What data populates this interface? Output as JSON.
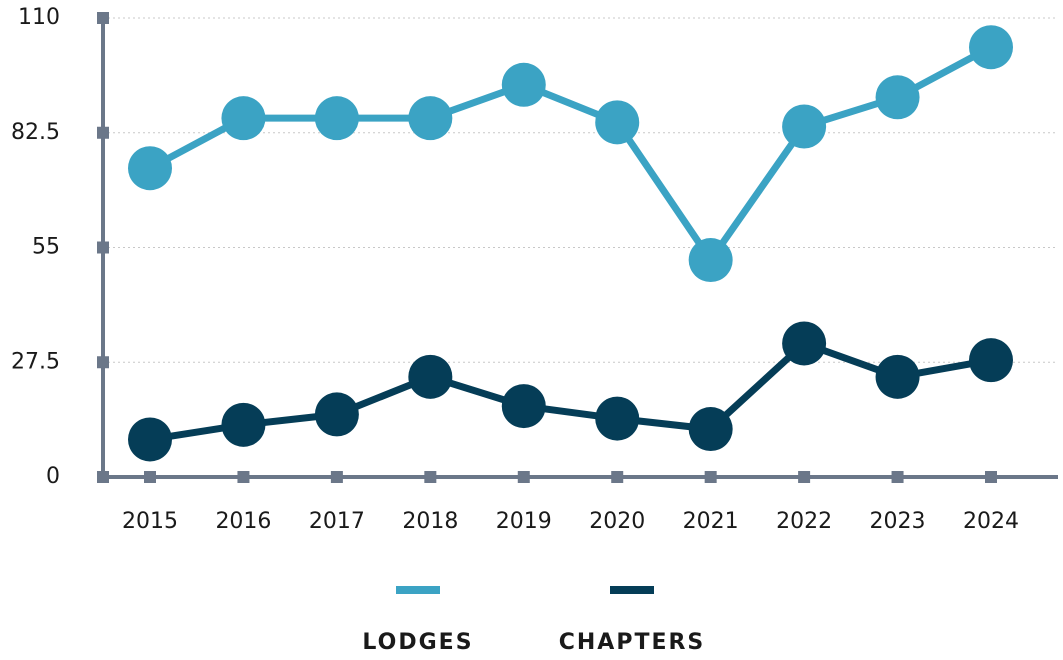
{
  "chart_data": {
    "type": "line",
    "categories": [
      "2015",
      "2016",
      "2017",
      "2018",
      "2019",
      "2020",
      "2021",
      "2022",
      "2023",
      "2024"
    ],
    "series": [
      {
        "name": "LODGES",
        "color": "#3ba3c4",
        "values": [
          74,
          86,
          86,
          86,
          94,
          85,
          52,
          84,
          91,
          103
        ]
      },
      {
        "name": "CHAPTERS",
        "color": "#053d57",
        "values": [
          9,
          12.5,
          15,
          24,
          17,
          14,
          11.5,
          32,
          24,
          28
        ]
      }
    ],
    "ylim": [
      0,
      110
    ],
    "yticks": [
      0,
      27.5,
      55,
      82.5,
      110
    ],
    "grid": true
  }
}
